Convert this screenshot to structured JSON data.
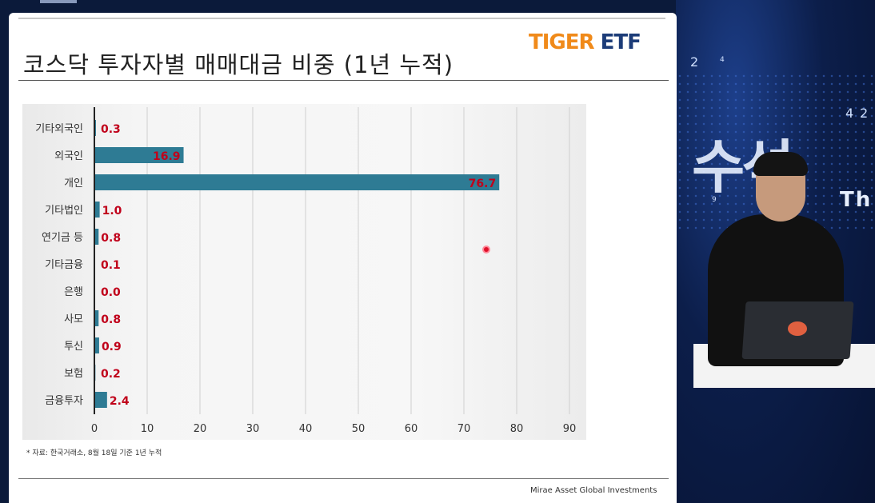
{
  "slide": {
    "title": "코스닥 투자자별 매매대금 비중 (1년 누적)",
    "logo_part1": "TIGER",
    "logo_part2": "ETF",
    "source": "* 자료: 한국거래소, 8월 18일 기준 1년 누적",
    "footer": "Mirae Asset Global Investments"
  },
  "studio": {
    "bg_text_large": "수석",
    "bg_text_small": "Th",
    "numbers": [
      "2",
      "4",
      "4",
      "2",
      "9"
    ]
  },
  "colors": {
    "bar": "#2e7b94",
    "value_label": "#c0001a",
    "logo_orange": "#f08a1a",
    "logo_navy": "#1c3c78"
  },
  "chart_data": {
    "type": "bar",
    "orientation": "horizontal",
    "categories": [
      "기타외국인",
      "외국인",
      "개인",
      "기타법인",
      "연기금 등",
      "기타금융",
      "은행",
      "사모",
      "투신",
      "보험",
      "금융투자"
    ],
    "values": [
      0.3,
      16.9,
      76.7,
      1.0,
      0.8,
      0.1,
      0.0,
      0.8,
      0.9,
      0.2,
      2.4
    ],
    "value_labels": [
      "0.3",
      "16.9",
      "76.7",
      "1.0",
      "0.8",
      "0.1",
      "0.0",
      "0.8",
      "0.9",
      "0.2",
      "2.4"
    ],
    "xlim": [
      0,
      90
    ],
    "xticks": [
      0,
      10,
      20,
      30,
      40,
      50,
      60,
      70,
      80,
      90
    ],
    "grid": true,
    "title": "코스닥 투자자별 매매대금 비중 (1년 누적)",
    "xlabel": "",
    "ylabel": ""
  }
}
